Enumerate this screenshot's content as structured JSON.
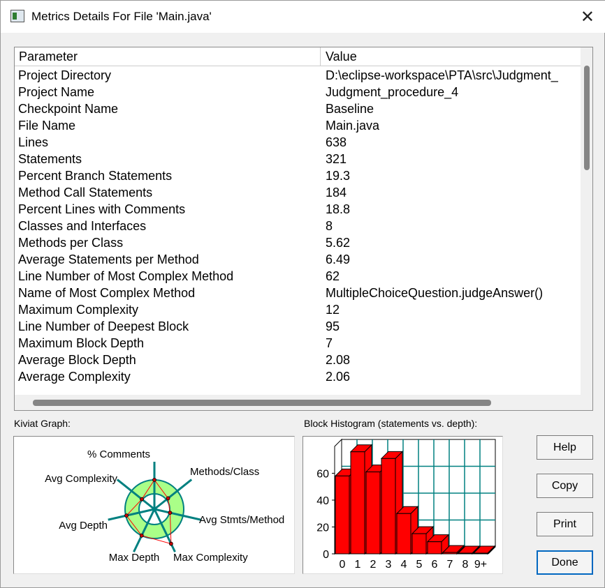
{
  "window": {
    "title": "Metrics Details For File 'Main.java'",
    "close_label": "✕"
  },
  "table": {
    "headers": {
      "parameter": "Parameter",
      "value": "Value"
    },
    "rows": [
      {
        "p": "Project Directory",
        "v": "D:\\eclipse-workspace\\PTA\\src\\Judgment_"
      },
      {
        "p": "Project Name",
        "v": "Judgment_procedure_4"
      },
      {
        "p": "Checkpoint Name",
        "v": "Baseline"
      },
      {
        "p": "File Name",
        "v": "Main.java"
      },
      {
        "p": "Lines",
        "v": "638"
      },
      {
        "p": "Statements",
        "v": "321"
      },
      {
        "p": "Percent Branch Statements",
        "v": "19.3"
      },
      {
        "p": "Method Call Statements",
        "v": "184"
      },
      {
        "p": "Percent Lines with Comments",
        "v": "18.8"
      },
      {
        "p": "Classes and Interfaces",
        "v": "8"
      },
      {
        "p": "Methods per Class",
        "v": "5.62"
      },
      {
        "p": "Average Statements per Method",
        "v": "6.49"
      },
      {
        "p": "Line Number of Most Complex Method",
        "v": "62"
      },
      {
        "p": "Name of Most Complex Method",
        "v": "MultipleChoiceQuestion.judgeAnswer()"
      },
      {
        "p": "Maximum Complexity",
        "v": "12"
      },
      {
        "p": "Line Number of Deepest Block",
        "v": "95"
      },
      {
        "p": "Maximum Block Depth",
        "v": "7"
      },
      {
        "p": "Average Block Depth",
        "v": "2.08"
      },
      {
        "p": "Average Complexity",
        "v": "2.06"
      }
    ]
  },
  "kiviat": {
    "label": "Kiviat Graph:",
    "axes": [
      "% Comments",
      "Methods/Class",
      "Avg Stmts/Method",
      "Max Complexity",
      "Max Depth",
      "Avg Depth",
      "Avg Complexity"
    ],
    "colors": {
      "ring": "#aaff88",
      "spoke": "#008080",
      "polygon": "#ff0000"
    }
  },
  "histogram": {
    "label": "Block Histogram (statements vs. depth):",
    "chart_data": {
      "type": "bar",
      "categories": [
        "0",
        "1",
        "2",
        "3",
        "4",
        "5",
        "6",
        "7",
        "8",
        "9+"
      ],
      "values": [
        58,
        76,
        61,
        71,
        30,
        15,
        9,
        1,
        0,
        0
      ],
      "yticks": [
        "0",
        "20",
        "40",
        "60"
      ],
      "ylim": [
        0,
        80
      ],
      "grid": true,
      "bar_color": "#ff0000",
      "grid_color": "#008080"
    }
  },
  "buttons": {
    "help": "Help",
    "copy": "Copy",
    "print": "Print",
    "done": "Done"
  }
}
